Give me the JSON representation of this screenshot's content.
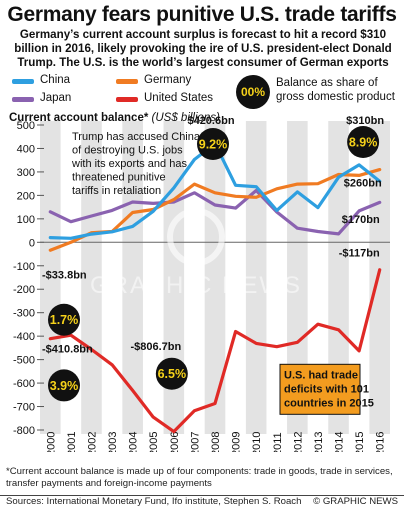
{
  "header": {
    "title": "Germany fears punitive U.S. trade tariffs",
    "subtitle": "Germany’s current account surplus is forecast to hit a record $310 billion in 2016, likely provoking the ire of U.S. president-elect Donald Trump. The U.S. is the world’s largest consumer of German exports"
  },
  "legend": {
    "china": "China",
    "germany": "Germany",
    "japan": "Japan",
    "us": "United States",
    "badge_sample": "00%",
    "badge_meaning": "Balance as share of gross domestic product"
  },
  "colors": {
    "china": "#2e9fe0",
    "germany": "#f07b22",
    "japan": "#8a62b0",
    "us": "#e02a26",
    "badge_fill": "#111111",
    "badge_text": "#f6d21a",
    "note_box": "#f39c1f",
    "band": "#e3e3e3"
  },
  "axis": {
    "title": "Current account balance*",
    "unit": "(US$ billions)"
  },
  "annotations": {
    "trump_note": "Trump has accused China of destroying U.S. jobs with its exports and has threatened punitive tariffs in retaliation",
    "us_deficit_note": "U.S. had trade deficits with 101 countries in 2015",
    "china_2008_value": "$420.6bn",
    "china_2008_pct": "9.2%",
    "germany_2016_value": "$310bn",
    "germany_2016_pct": "8.9%",
    "china_2016_value": "$260bn",
    "japan_2016_value": "$170bn",
    "us_2016_value": "-$117bn",
    "germany_2000_value": "-$33.8bn",
    "germany_2000_pct": "1.7%",
    "us_2000_value": "-$410.8bn",
    "us_2000_pct": "3.9%",
    "us_2006_value": "-$806.7bn",
    "us_2006_pct": "6.5%"
  },
  "watermark": "GRAPHIC NEWS",
  "footnote": "*Current account balance is made up of four components: trade in goods, trade in services, transfer payments and foreign-income payments",
  "sources": "Sources: International Monetary Fund, Ifo institute, Stephen S. Roach",
  "credit": "© GRAPHIC NEWS",
  "chart_data": {
    "type": "line",
    "x": [
      "2000",
      "2001",
      "2002",
      "2003",
      "2004",
      "2005",
      "2006",
      "2007",
      "2008",
      "2009",
      "2010",
      "2011",
      "2012",
      "2013",
      "2014",
      "2015",
      "2016"
    ],
    "ylim": [
      -800,
      500
    ],
    "yticks": [
      500,
      400,
      300,
      200,
      100,
      0,
      -100,
      -200,
      -300,
      -400,
      -500,
      -600,
      -700,
      -800
    ],
    "grid": false,
    "series": [
      {
        "name": "China",
        "key": "china",
        "values": [
          20,
          17,
          35,
          45,
          68,
          132,
          232,
          353,
          420.6,
          243,
          237,
          136,
          215,
          148,
          277,
          330,
          260
        ]
      },
      {
        "name": "Germany",
        "key": "germany",
        "values": [
          -33.8,
          0,
          41,
          46,
          127,
          140,
          182,
          248,
          211,
          196,
          192,
          228,
          248,
          250,
          289,
          285,
          310
        ]
      },
      {
        "name": "Japan",
        "key": "japan",
        "values": [
          130,
          88,
          112,
          136,
          172,
          166,
          172,
          211,
          159,
          146,
          221,
          129,
          60,
          46,
          36,
          134,
          170
        ]
      },
      {
        "name": "United States",
        "key": "us",
        "values": [
          -410.8,
          -396,
          -457,
          -522,
          -631,
          -745,
          -806.7,
          -718,
          -687,
          -380,
          -431,
          -445,
          -426,
          -349,
          -373,
          -463,
          -117
        ]
      }
    ]
  }
}
